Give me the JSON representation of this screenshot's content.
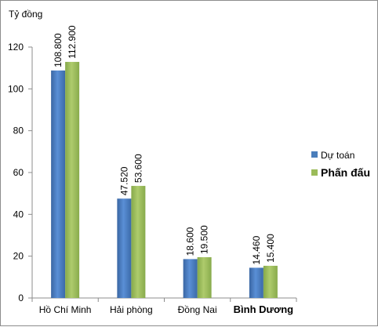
{
  "chart_data": {
    "type": "bar",
    "ylabel": "Tỷ đồng",
    "ylim": [
      0,
      120
    ],
    "yticks": [
      0,
      20,
      40,
      60,
      80,
      100,
      120
    ],
    "grid": false,
    "legend_position": "right",
    "categories": [
      "Hồ Chí Minh",
      "Hải phòng",
      "Đồng Nai",
      "Bình Dương"
    ],
    "series": [
      {
        "name": "Dự toán",
        "color": "#4a7ebb",
        "values": [
          108.8,
          47.52,
          18.6,
          14.46
        ],
        "labels": [
          "108.800",
          "47.520",
          "18.600",
          "14.460"
        ]
      },
      {
        "name": "Phấn đấu",
        "color": "#9bbb59",
        "values": [
          112.9,
          53.6,
          19.5,
          15.4
        ],
        "labels": [
          "112.900",
          "53.600",
          "19.500",
          "15.400"
        ]
      }
    ]
  }
}
